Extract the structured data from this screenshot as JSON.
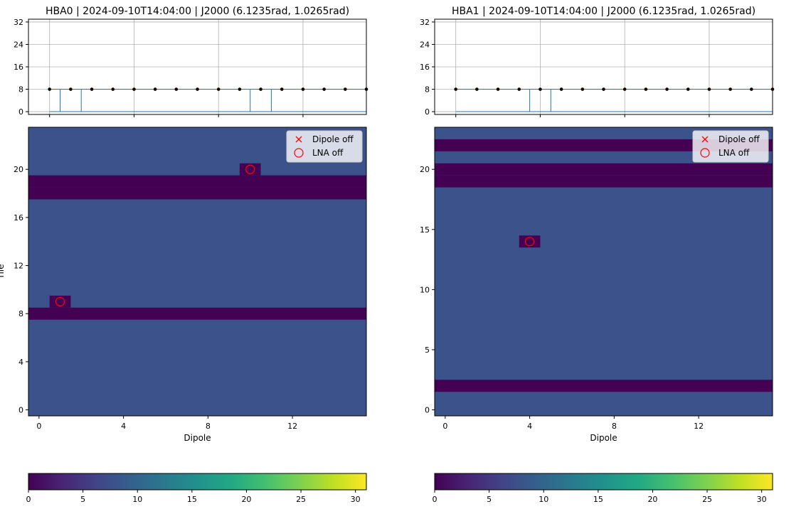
{
  "chart_data": [
    {
      "type": "line",
      "title": "HBA0 | 2024-09-10T14:04:00 | J2000 (6.1235rad, 1.0265rad)",
      "xlabel": "",
      "ylabel": "",
      "xlim": [
        -1,
        15
      ],
      "ylim": [
        -1,
        33
      ],
      "xticks": [
        0,
        4,
        8,
        12
      ],
      "yticks": [
        0,
        8,
        16,
        24,
        32
      ],
      "grid": true,
      "x": [
        0,
        1,
        2,
        3,
        4,
        5,
        6,
        7,
        8,
        9,
        10,
        11,
        12,
        13,
        14,
        15
      ],
      "values": [
        8,
        8,
        8,
        8,
        8,
        8,
        8,
        8,
        8,
        8,
        8,
        8,
        8,
        8,
        8,
        8
      ],
      "spikes_x": [
        0.5,
        1.5,
        9.5,
        10.5
      ],
      "spikes_to": 8,
      "baseline": 0
    },
    {
      "type": "heatmap",
      "xlabel": "Dipole",
      "ylabel": "Tile",
      "xlim": [
        -0.5,
        15.5
      ],
      "ylim": [
        -0.5,
        23.5
      ],
      "xticks": [
        0,
        4,
        8,
        12
      ],
      "yticks": [
        0,
        4,
        8,
        12,
        16,
        20
      ],
      "background_value": 8,
      "rows_low": [
        8,
        18,
        19
      ],
      "cells_low": [
        [
          1,
          9
        ],
        [
          10,
          20
        ]
      ],
      "low_value": 0,
      "markers": [
        {
          "x": 1,
          "y": 9,
          "type": "LNA off"
        },
        {
          "x": 10,
          "y": 20,
          "type": "LNA off"
        }
      ],
      "legend": [
        "Dipole off",
        "LNA off"
      ],
      "legend_position": "upper right"
    },
    {
      "type": "heatmap",
      "colorbar": true,
      "colormap": "viridis",
      "range": [
        0,
        31
      ],
      "ticks": [
        0,
        5,
        10,
        15,
        20,
        25,
        30
      ]
    },
    {
      "type": "line",
      "title": "HBA1 | 2024-09-10T14:04:00 | J2000 (6.1235rad, 1.0265rad)",
      "xlabel": "",
      "ylabel": "",
      "xlim": [
        -1,
        15
      ],
      "ylim": [
        -1,
        33
      ],
      "xticks": [
        0,
        4,
        8,
        12
      ],
      "yticks": [
        0,
        8,
        16,
        24,
        32
      ],
      "grid": true,
      "x": [
        0,
        1,
        2,
        3,
        4,
        5,
        6,
        7,
        8,
        9,
        10,
        11,
        12,
        13,
        14,
        15
      ],
      "values": [
        8,
        8,
        8,
        8,
        8,
        8,
        8,
        8,
        8,
        8,
        8,
        8,
        8,
        8,
        8,
        8
      ],
      "spikes_x": [
        3.5,
        4.5
      ],
      "spikes_to": 8,
      "baseline": 0
    },
    {
      "type": "heatmap",
      "xlabel": "Dipole",
      "ylabel": "",
      "xlim": [
        -0.5,
        15.5
      ],
      "ylim": [
        -0.5,
        23.5
      ],
      "xticks": [
        0,
        4,
        8,
        12
      ],
      "yticks": [
        0,
        5,
        10,
        15,
        20
      ],
      "background_value": 8,
      "rows_low": [
        2,
        19,
        20,
        22
      ],
      "cells_low": [
        [
          4,
          14
        ]
      ],
      "low_value": 0,
      "markers": [
        {
          "x": 4,
          "y": 14,
          "type": "LNA off"
        }
      ],
      "legend": [
        "Dipole off",
        "LNA off"
      ],
      "legend_position": "upper right"
    },
    {
      "type": "heatmap",
      "colorbar": true,
      "colormap": "viridis",
      "range": [
        0,
        31
      ],
      "ticks": [
        0,
        5,
        10,
        15,
        20,
        25,
        30
      ]
    }
  ],
  "colors": {
    "line": "#1f77b4",
    "point": "#000000",
    "grid": "#b0b0b0",
    "marker": "#ff0000",
    "legend_bg": "#ffffff"
  }
}
